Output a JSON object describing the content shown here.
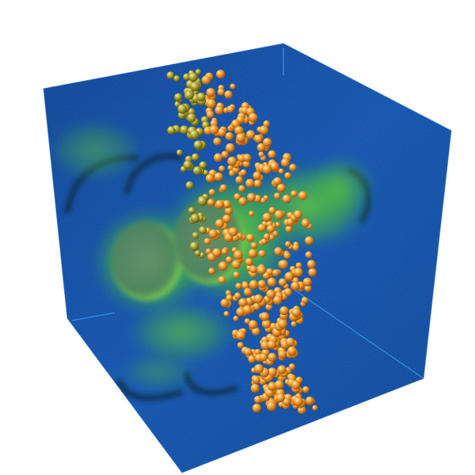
{
  "visualization": {
    "background_color": "#ffffff",
    "volume_color": "#0b3fa8",
    "volume_edge_color": "#3aa0ff",
    "density_color": "#4fd21a",
    "cavity_color": "#4f7a6e",
    "particle_color": "#f5a030",
    "particle_highlight": "#ffe9b0",
    "particle_shadow": "#a0520a"
  }
}
